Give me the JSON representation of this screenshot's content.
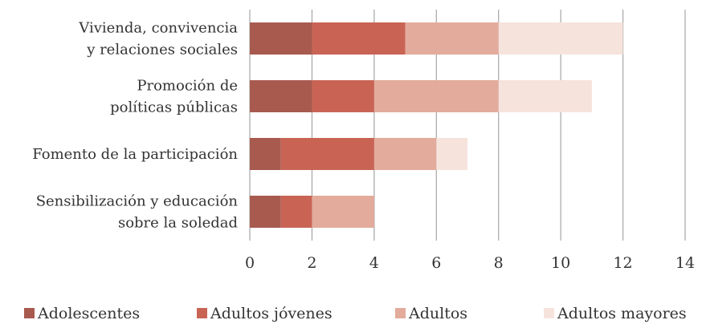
{
  "chart_data": {
    "type": "bar",
    "orientation": "horizontal",
    "stacked": true,
    "categories": [
      [
        "Vivienda, convivencia",
        "y relaciones sociales"
      ],
      [
        "Promoción de",
        "políticas públicas"
      ],
      [
        "Fomento de la participación"
      ],
      [
        "Sensibilización y educación",
        "sobre la soledad"
      ]
    ],
    "series": [
      {
        "name": "Adolescentes",
        "color": "#a85a4f",
        "values": [
          2,
          2,
          1,
          1
        ]
      },
      {
        "name": "Adultos jóvenes",
        "color": "#c96455",
        "values": [
          3,
          2,
          3,
          1
        ]
      },
      {
        "name": "Adultos",
        "color": "#e3ab9b",
        "values": [
          3,
          4,
          2,
          2
        ]
      },
      {
        "name": "Adultos mayores",
        "color": "#f6e3dc",
        "values": [
          4,
          3,
          1,
          0
        ]
      }
    ],
    "xlim": [
      0,
      14
    ],
    "xticks": [
      0,
      2,
      4,
      6,
      8,
      10,
      12,
      14
    ],
    "grid": "vertical",
    "legend": "bottom",
    "xlabel": "",
    "ylabel": "",
    "title": ""
  }
}
